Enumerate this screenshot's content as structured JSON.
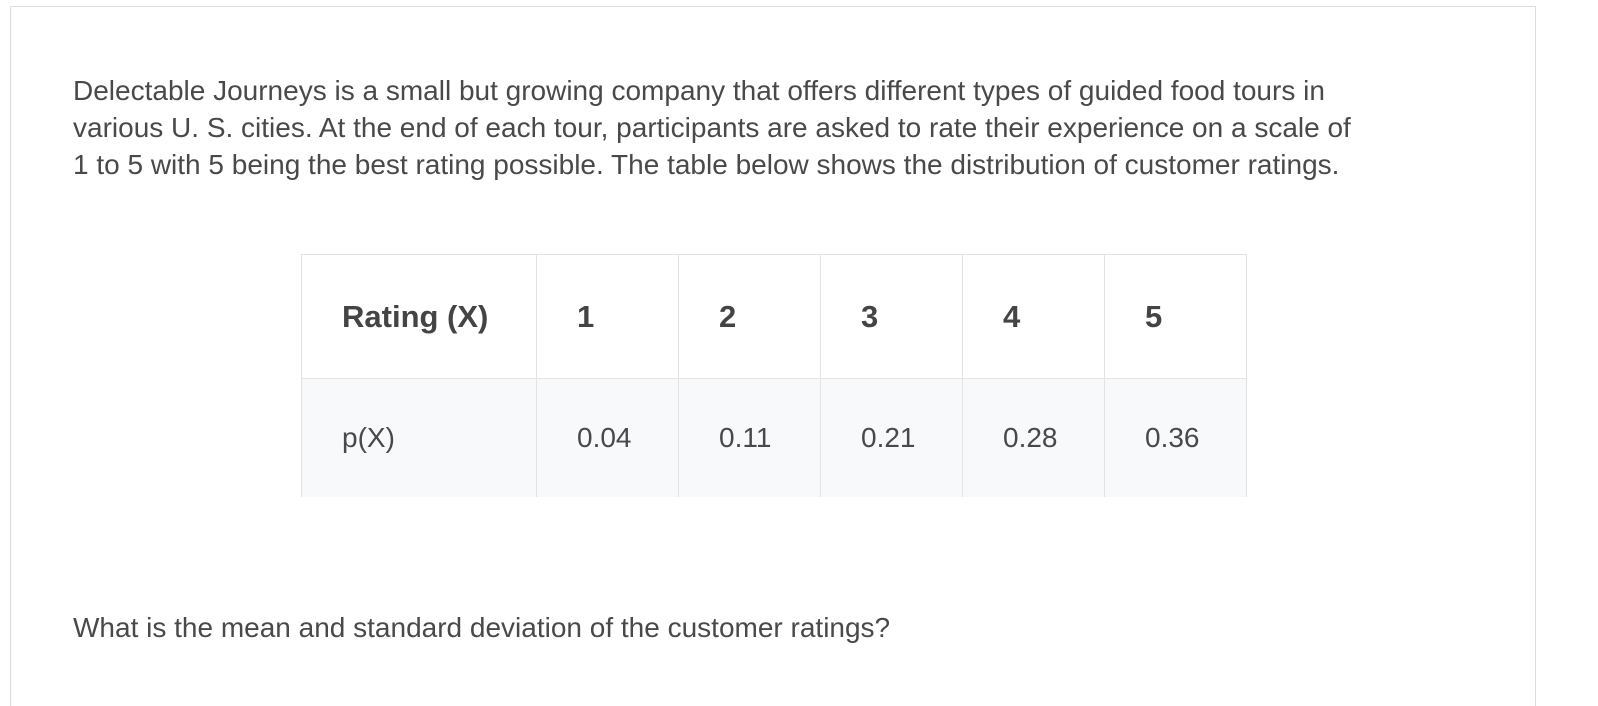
{
  "paragraph_lines": [
    "Delectable Journeys is a small but growing company that offers different types of guided food tours in",
    "various U. S. cities. At the end of each tour, participants are asked to rate their experience on a scale of",
    "1 to 5 with 5 being the best rating possible. The table below shows the distribution of customer ratings."
  ],
  "table": {
    "header": [
      "Rating (X)",
      "1",
      "2",
      "3",
      "4",
      "5"
    ],
    "rows": [
      [
        "p(X)",
        "0.04",
        "0.11",
        "0.21",
        "0.28",
        "0.36"
      ]
    ]
  },
  "question": "What is the mean and standard deviation of the customer ratings?"
}
